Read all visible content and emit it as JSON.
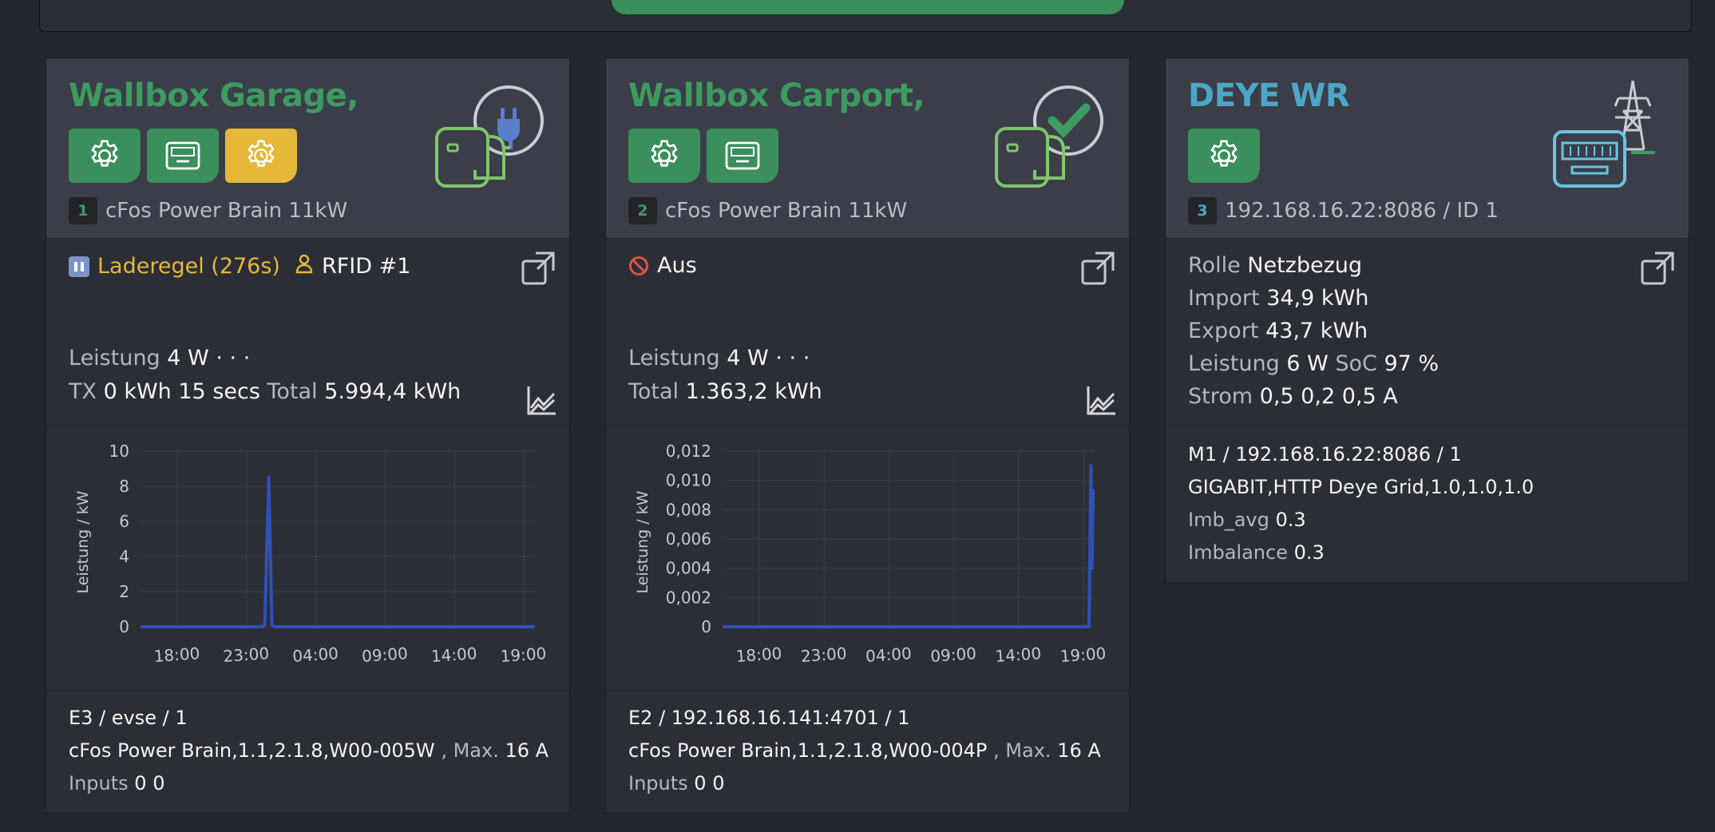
{
  "colors": {
    "green": "#3d9b62",
    "blue": "#4ca7c6",
    "yellow": "#e5b83a",
    "series": "#3050b8"
  },
  "cards": [
    {
      "title": "Wallbox Garage,",
      "index": "1",
      "device": "cFos Power Brain 11kW",
      "status_text": "Laderegel (276s)",
      "status_icon": "pause-icon",
      "rfid_text": "RFID #1",
      "leistung_label": "Leistung",
      "leistung_value": "4 W",
      "dots": "· · ·",
      "tx_label": "TX",
      "tx_value": "0 kWh 15 secs",
      "total_label": "Total",
      "total_value": "5.994,4 kWh",
      "foot_line1": "E3 / evse / 1",
      "foot_model": "cFos Power Brain,1.1,2.1.8,W00-005W",
      "foot_max_label": ", Max.",
      "foot_max_value": "16 A",
      "inputs_label": "Inputs",
      "inputs_value": "0 0"
    },
    {
      "title": "Wallbox Carport,",
      "index": "2",
      "device": "cFos Power Brain 11kW",
      "status_text": "Aus",
      "status_icon": "no-entry-icon",
      "leistung_label": "Leistung",
      "leistung_value": "4 W",
      "dots": "· · ·",
      "total_label": "Total",
      "total_value": "1.363,2 kWh",
      "foot_line1": "E2 / 192.168.16.141:4701 / 1",
      "foot_model": "cFos Power Brain,1.1,2.1.8,W00-004P",
      "foot_max_label": ", Max.",
      "foot_max_value": "16 A",
      "inputs_label": "Inputs",
      "inputs_value": "0 0"
    },
    {
      "title": "DEYE WR",
      "index": "3",
      "device": "192.168.16.22:8086 / ID 1",
      "rolle_label": "Rolle",
      "rolle_value": "Netzbezug",
      "import_label": "Import",
      "import_value": "34,9 kWh",
      "export_label": "Export",
      "export_value": "43,7 kWh",
      "leistung_label": "Leistung",
      "leistung_value": "6 W",
      "soc_label": "SoC",
      "soc_value": "97 %",
      "strom_label": "Strom",
      "strom_value": "0,5 0,2 0,5 A",
      "foot_line1": "M1 / 192.168.16.22:8086 / 1",
      "foot_line2": "GIGABIT,HTTP Deye Grid,1.0,1.0,1.0",
      "imb_avg_label": "Imb_avg",
      "imb_avg_value": "0.3",
      "imbalance_label": "Imbalance",
      "imbalance_value": "0.3"
    }
  ],
  "chart_data": [
    {
      "type": "line",
      "ylabel": "Leistung / kW",
      "ylim": [
        0,
        10
      ],
      "yticks": [
        "10",
        "8",
        "6",
        "4",
        "2",
        "0"
      ],
      "xticks": [
        "18:00",
        "23:00",
        "04:00",
        "09:00",
        "14:00",
        "19:00"
      ],
      "series": [
        {
          "points": [
            [
              0,
              0
            ],
            [
              0.22,
              0
            ],
            [
              0.31,
              0
            ],
            [
              0.315,
              0.1
            ],
            [
              0.325,
              8.5
            ],
            [
              0.333,
              0.1
            ],
            [
              0.34,
              0
            ],
            [
              1.0,
              0
            ]
          ]
        }
      ]
    },
    {
      "type": "line",
      "ylabel": "Leistung / kW",
      "ylim": [
        0,
        0.012
      ],
      "yticks": [
        "0,012",
        "0,010",
        "0,008",
        "0,006",
        "0,004",
        "0,002",
        "0"
      ],
      "xticks": [
        "18:00",
        "23:00",
        "04:00",
        "09:00",
        "14:00",
        "19:00"
      ],
      "series": [
        {
          "points": [
            [
              0,
              0
            ],
            [
              0.22,
              0
            ],
            [
              0.3,
              0
            ],
            [
              0.96,
              0
            ],
            [
              0.985,
              0
            ],
            [
              0.99,
              0.011
            ],
            [
              0.993,
              0.004
            ],
            [
              0.996,
              0.0094
            ]
          ]
        }
      ]
    }
  ]
}
